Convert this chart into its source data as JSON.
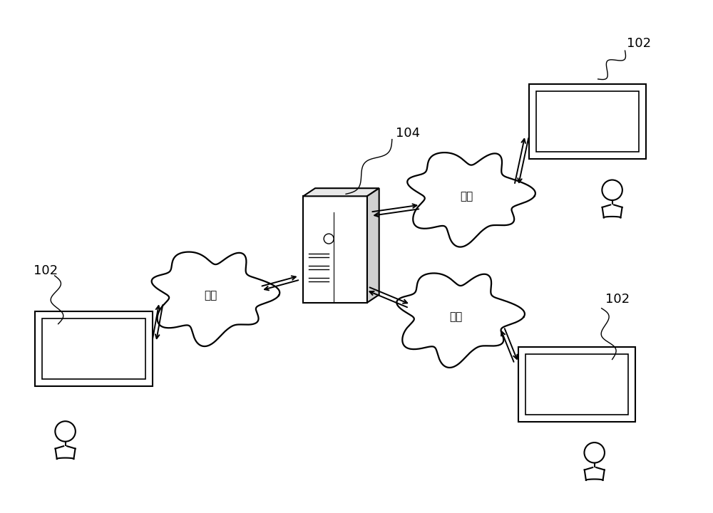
{
  "background_color": "#ffffff",
  "label_102": "102",
  "label_104": "104",
  "network_label": "网络",
  "fig_width": 10.0,
  "fig_height": 7.2,
  "dpi": 100
}
